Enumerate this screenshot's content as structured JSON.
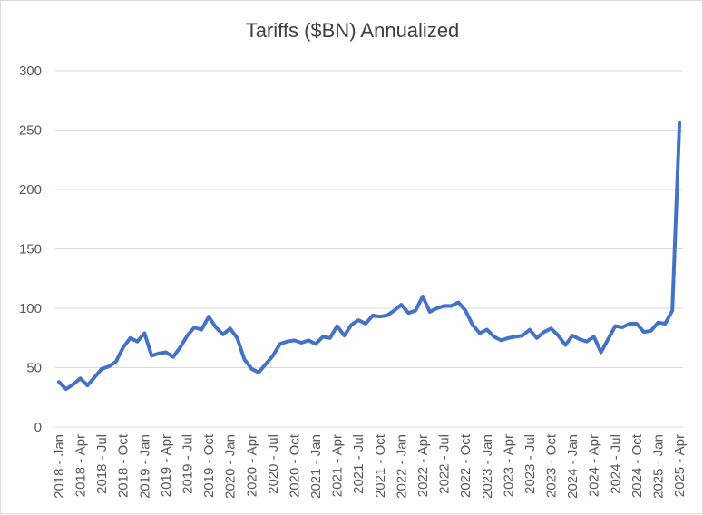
{
  "chart_data": {
    "type": "line",
    "title": "Tariffs ($BN) Annualized",
    "xlabel": "",
    "ylabel": "",
    "ylim": [
      0,
      300
    ],
    "yticks": [
      0,
      50,
      100,
      150,
      200,
      250,
      300
    ],
    "grid": true,
    "legend": "none",
    "color": "#4472c4",
    "xtick_labels": [
      "2018 - Jan",
      "2018 - Apr",
      "2018 - Jul",
      "2018 - Oct",
      "2019 - Jan",
      "2019 - Apr",
      "2019 - Jul",
      "2019 - Oct",
      "2020 - Jan",
      "2020 - Apr",
      "2020 - Jul",
      "2020 - Oct",
      "2021 - Jan",
      "2021 - Apr",
      "2021 - Jul",
      "2021 - Oct",
      "2022 - Jan",
      "2022 - Apr",
      "2022 - Jul",
      "2022 - Oct",
      "2023 - Jan",
      "2023 - Apr",
      "2023 - Jul",
      "2023 - Oct",
      "2024 - Jan",
      "2024 - Apr",
      "2024 - Jul",
      "2024 - Oct",
      "2025 - Jan",
      "2025 - Apr"
    ],
    "series": [
      {
        "name": "Tariffs ($BN) Annualized",
        "start": "2018 - Jan",
        "frequency": "monthly",
        "values": [
          38,
          32,
          36,
          41,
          35,
          42,
          49,
          51,
          55,
          67,
          75,
          72,
          79,
          60,
          62,
          63,
          59,
          67,
          77,
          84,
          82,
          93,
          84,
          78,
          83,
          75,
          57,
          49,
          46,
          53,
          60,
          70,
          72,
          73,
          71,
          73,
          70,
          76,
          75,
          85,
          77,
          86,
          90,
          87,
          94,
          93,
          94,
          98,
          103,
          96,
          98,
          110,
          97,
          100,
          102,
          102,
          105,
          98,
          86,
          79,
          82,
          76,
          73,
          75,
          76,
          77,
          82,
          75,
          80,
          83,
          77,
          69,
          77,
          74,
          72,
          76,
          63,
          74,
          85,
          84,
          87,
          87,
          80,
          81,
          88,
          87,
          98,
          256
        ]
      }
    ]
  }
}
